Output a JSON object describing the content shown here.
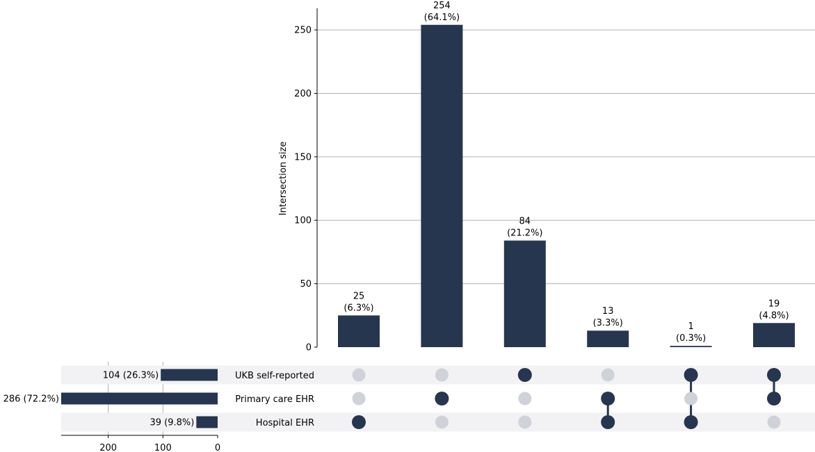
{
  "chart_data": {
    "type": "upset",
    "bar_color": "#26364f",
    "inactive_dot_color": "#d0d2da",
    "stripe_color": "#f2f2f4",
    "grid": true,
    "intersections": {
      "ylabel": "Intersection size",
      "ylim": [
        0,
        267
      ],
      "yticks": [
        0,
        50,
        100,
        150,
        200,
        250
      ],
      "values": [
        25,
        254,
        84,
        13,
        1,
        19
      ],
      "labels": [
        {
          "count": "25",
          "pct": "(6.3%)"
        },
        {
          "count": "254",
          "pct": "(64.1%)"
        },
        {
          "count": "84",
          "pct": "(21.2%)"
        },
        {
          "count": "13",
          "pct": "(3.3%)"
        },
        {
          "count": "1",
          "pct": "(0.3%)"
        },
        {
          "count": "19",
          "pct": "(4.8%)"
        }
      ],
      "membership": [
        [
          false,
          false,
          true
        ],
        [
          false,
          true,
          false
        ],
        [
          true,
          false,
          false
        ],
        [
          false,
          true,
          true
        ],
        [
          true,
          false,
          true
        ],
        [
          true,
          true,
          false
        ]
      ]
    },
    "sets": {
      "names": [
        "UKB self-reported",
        "Primary care EHR",
        "Hospital EHR"
      ],
      "values": [
        104,
        286,
        39
      ],
      "labels": [
        "104 (26.3%)",
        "286 (72.2%)",
        "39 (9.8%)"
      ],
      "xlim": [
        0,
        286
      ],
      "xticks": [
        200,
        100,
        0
      ]
    }
  }
}
